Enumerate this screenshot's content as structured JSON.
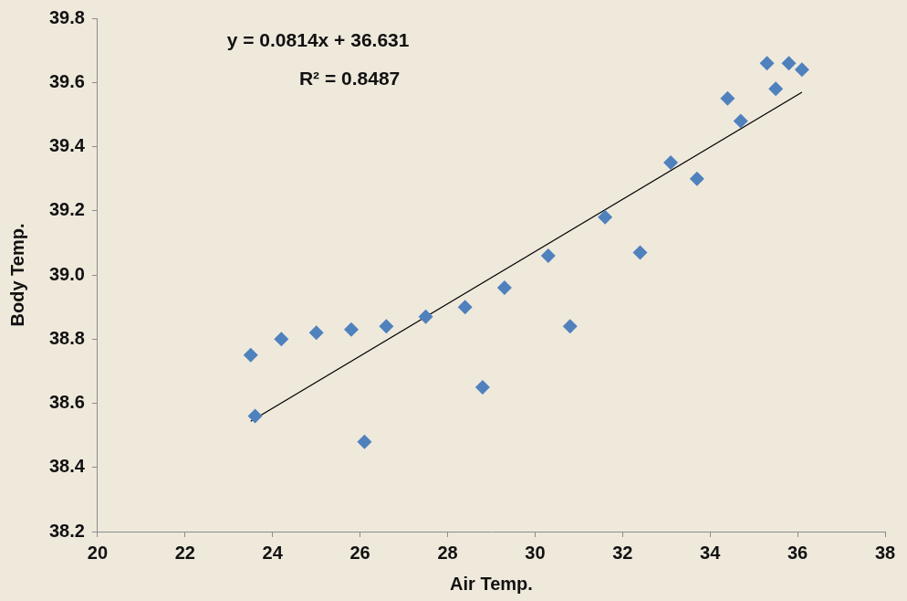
{
  "chart_data": {
    "type": "scatter",
    "x_label": "Air Temp.",
    "y_label": "Body Temp.",
    "annotations": [
      "y = 0.0814x + 36.631",
      "R² = 0.8487"
    ],
    "x": [
      23.5,
      23.6,
      24.2,
      25.0,
      25.8,
      26.1,
      26.6,
      27.5,
      28.4,
      28.8,
      29.3,
      30.3,
      30.8,
      31.6,
      32.4,
      33.1,
      33.7,
      34.4,
      34.7,
      35.3,
      35.5,
      35.8,
      36.1
    ],
    "values": [
      38.75,
      38.56,
      38.8,
      38.82,
      38.83,
      38.48,
      38.84,
      38.87,
      38.9,
      38.65,
      38.96,
      39.06,
      38.84,
      39.18,
      39.07,
      39.35,
      39.3,
      39.55,
      39.48,
      39.66,
      39.58,
      39.66,
      39.64
    ],
    "color": "#4f81bd",
    "marker": "diamond",
    "trendline": {
      "slope": 0.0814,
      "intercept": 36.631,
      "color": "#000000",
      "line_style": "solid"
    },
    "xlim": [
      20,
      38
    ],
    "xticks": [
      20,
      22,
      24,
      26,
      28,
      30,
      32,
      34,
      36,
      38
    ],
    "ylim": [
      38.2,
      39.8
    ],
    "yticks": [
      38.2,
      38.4,
      38.6,
      38.8,
      {
        "value": 39,
        "label": "39.0"
      },
      39.2,
      39.4,
      39.6,
      39.8
    ],
    "grid": false
  }
}
